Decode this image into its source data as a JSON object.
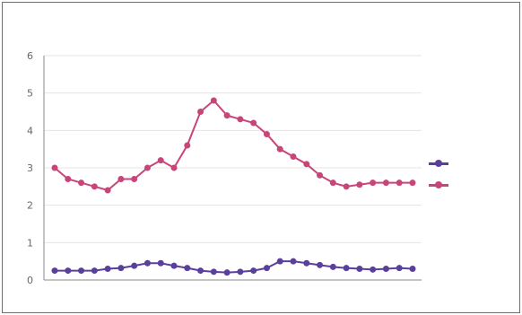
{
  "chart_data": {
    "type": "line",
    "title": "",
    "xlabel": "",
    "ylabel": "",
    "ylim": [
      0,
      6
    ],
    "y_ticks": [
      "0",
      "1",
      "2",
      "3",
      "4",
      "5",
      "6"
    ],
    "x": [
      1,
      2,
      3,
      4,
      5,
      6,
      7,
      8,
      9,
      10,
      11,
      12,
      13,
      14,
      15,
      16,
      17,
      18,
      19,
      20,
      21,
      22,
      23,
      24,
      25,
      26,
      27,
      28
    ],
    "series": [
      {
        "name": "",
        "color": "#5a3f9c",
        "values": [
          0.25,
          0.25,
          0.25,
          0.25,
          0.3,
          0.32,
          0.38,
          0.45,
          0.45,
          0.38,
          0.32,
          0.25,
          0.22,
          0.2,
          0.22,
          0.25,
          0.32,
          0.5,
          0.5,
          0.45,
          0.4,
          0.35,
          0.32,
          0.3,
          0.28,
          0.3,
          0.32,
          0.3
        ]
      },
      {
        "name": "",
        "color": "#c8457a",
        "values": [
          3.0,
          2.7,
          2.6,
          2.5,
          2.4,
          2.7,
          2.7,
          3.0,
          3.2,
          3.0,
          3.6,
          4.5,
          4.8,
          4.4,
          4.3,
          4.2,
          3.9,
          3.5,
          3.3,
          3.1,
          2.8,
          2.6,
          2.5,
          2.55,
          2.6,
          2.6,
          2.6,
          2.6
        ]
      }
    ]
  }
}
